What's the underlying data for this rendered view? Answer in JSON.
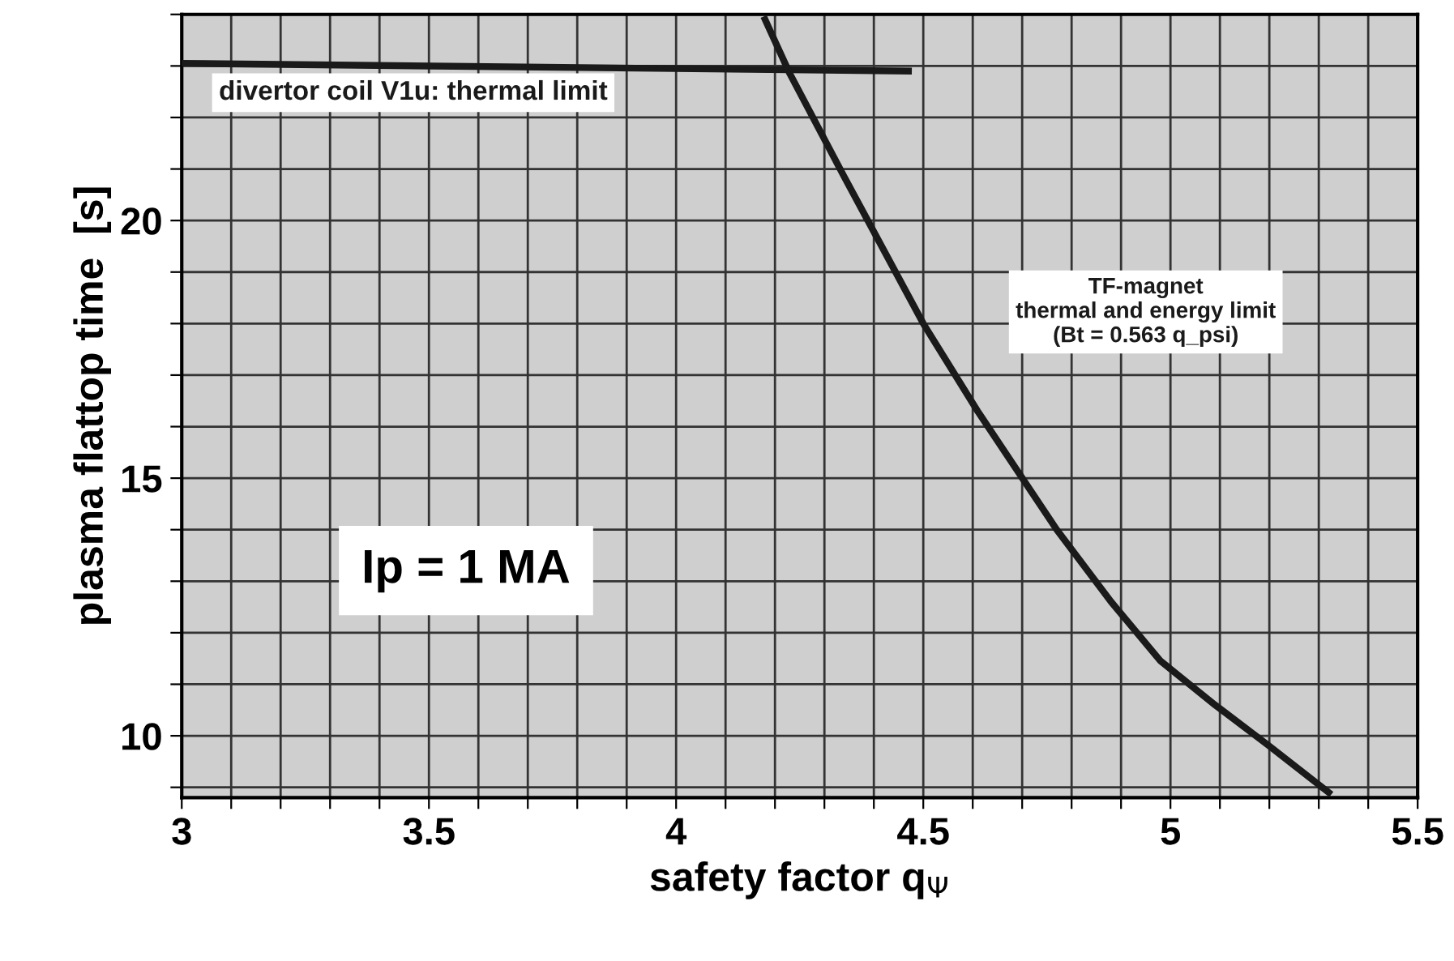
{
  "chart_data": {
    "type": "line",
    "xlabel": "safety factor q$_{Ψ}$",
    "ylabel": "plasma flattop time  [s]",
    "series": [
      {
        "name": "divertor coil V1u: thermal limit",
        "color": "#1a1a1a",
        "x": [
          3.0,
          4.47
        ],
        "values": [
          23.05,
          22.9
        ]
      },
      {
        "name": "TF-magnet\nthermal and energy limit\n(Bt = 0.563 q_psi)",
        "color": "#1a1a1a",
        "x": [
          4.18,
          4.23,
          4.34,
          4.5,
          4.61,
          4.77,
          4.88,
          4.98,
          5.09,
          5.2,
          5.32
        ],
        "values": [
          23.9,
          22.85,
          20.85,
          18.0,
          16.3,
          14.0,
          12.6,
          11.45,
          10.6,
          9.8,
          8.9
        ]
      }
    ],
    "annotations": [
      "Ip = 1 MA"
    ],
    "xlim": [
      3,
      5.5
    ],
    "ylim": [
      8.8,
      24
    ],
    "xticks": [
      3,
      {
        "value": 3.1,
        "label": null
      },
      {
        "value": 3.2,
        "label": null
      },
      {
        "value": 3.3,
        "label": null
      },
      {
        "value": 3.4,
        "label": null
      },
      3.5,
      {
        "value": 3.6,
        "label": null
      },
      {
        "value": 3.7,
        "label": null
      },
      {
        "value": 3.8,
        "label": null
      },
      {
        "value": 3.9,
        "label": null
      },
      4,
      {
        "value": 4.1,
        "label": null
      },
      {
        "value": 4.2,
        "label": null
      },
      {
        "value": 4.3,
        "label": null
      },
      {
        "value": 4.4,
        "label": null
      },
      4.5,
      {
        "value": 4.6,
        "label": null
      },
      {
        "value": 4.7,
        "label": null
      },
      {
        "value": 4.8,
        "label": null
      },
      {
        "value": 4.9,
        "label": null
      },
      5,
      {
        "value": 5.1,
        "label": null
      },
      {
        "value": 5.2,
        "label": null
      },
      {
        "value": 5.3,
        "label": null
      },
      {
        "value": 5.4,
        "label": null
      },
      5.5
    ],
    "yticks": [
      {
        "value": 9,
        "label": null
      },
      10,
      {
        "value": 11,
        "label": null
      },
      {
        "value": 12,
        "label": null
      },
      {
        "value": 13,
        "label": null
      },
      {
        "value": 14,
        "label": null
      },
      15,
      {
        "value": 16,
        "label": null
      },
      {
        "value": 17,
        "label": null
      },
      {
        "value": 18,
        "label": null
      },
      {
        "value": 19,
        "label": null
      },
      20,
      {
        "value": 21,
        "label": null
      },
      {
        "value": 22,
        "label": null
      },
      {
        "value": 23,
        "label": null
      },
      {
        "value": 24,
        "label": null
      }
    ],
    "grid": true,
    "marker": "none",
    "line_style": "solid"
  }
}
